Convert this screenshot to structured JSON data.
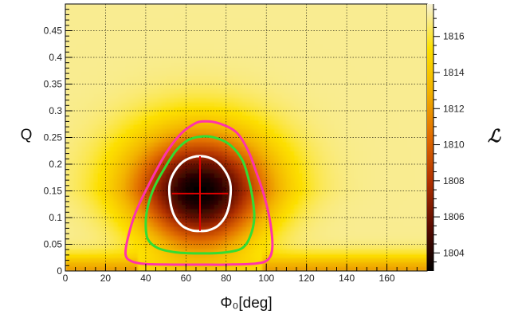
{
  "chart_data": {
    "type": "heatmap",
    "xlabel": "Φ₀[deg]",
    "ylabel": "Q",
    "zlabel": "ℒ",
    "xlim": [
      0,
      180
    ],
    "ylim": [
      0,
      0.5
    ],
    "zlim": [
      1803,
      1817.8
    ],
    "x_ticks": [
      0,
      20,
      40,
      60,
      80,
      100,
      120,
      140,
      160
    ],
    "x_tick_labels": [
      "0",
      "20",
      "40",
      "60",
      "80",
      "100",
      "120",
      "140",
      "160"
    ],
    "y_ticks": [
      0,
      0.05,
      0.1,
      0.15,
      0.2,
      0.25,
      0.3,
      0.35,
      0.4,
      0.45
    ],
    "y_tick_labels": [
      "0",
      "0.05",
      "0.1",
      "0.15",
      "0.2",
      "0.25",
      "0.3",
      "0.35",
      "0.4",
      "0.45"
    ],
    "z_ticks": [
      1804,
      1806,
      1808,
      1810,
      1812,
      1814,
      1816
    ],
    "z_tick_labels": [
      "1804",
      "1806",
      "1808",
      "1810",
      "1812",
      "1814",
      "1816"
    ],
    "grid": true,
    "colormap": [
      "#000000",
      "#5a0a00",
      "#b03000",
      "#e06a00",
      "#f2b000",
      "#fde000",
      "#f7f2d6"
    ],
    "best_fit": {
      "x": 67,
      "y": 0.145,
      "x_err": [
        53,
        81
      ],
      "y_err": [
        0.075,
        0.215
      ]
    },
    "contours": [
      {
        "color": "#ffffff",
        "points": [
          [
            67,
            0.215
          ],
          [
            74,
            0.208
          ],
          [
            79,
            0.19
          ],
          [
            82,
            0.165
          ],
          [
            82,
            0.135
          ],
          [
            80,
            0.105
          ],
          [
            76,
            0.085
          ],
          [
            71,
            0.076
          ],
          [
            67,
            0.075
          ],
          [
            63,
            0.076
          ],
          [
            58,
            0.085
          ],
          [
            54,
            0.105
          ],
          [
            52,
            0.135
          ],
          [
            52,
            0.165
          ],
          [
            55,
            0.19
          ],
          [
            60,
            0.208
          ]
        ]
      },
      {
        "color": "#33dd33",
        "points": [
          [
            68,
            0.252
          ],
          [
            75,
            0.249
          ],
          [
            82,
            0.236
          ],
          [
            88,
            0.208
          ],
          [
            91,
            0.175
          ],
          [
            93,
            0.14
          ],
          [
            94,
            0.1
          ],
          [
            92,
            0.065
          ],
          [
            88,
            0.043
          ],
          [
            80,
            0.035
          ],
          [
            68,
            0.033
          ],
          [
            55,
            0.035
          ],
          [
            46,
            0.043
          ],
          [
            41,
            0.06
          ],
          [
            40,
            0.09
          ],
          [
            41,
            0.12
          ],
          [
            44,
            0.155
          ],
          [
            49,
            0.19
          ],
          [
            55,
            0.225
          ],
          [
            61,
            0.245
          ]
        ]
      },
      {
        "color": "#ff33aa",
        "points": [
          [
            68,
            0.28
          ],
          [
            76,
            0.277
          ],
          [
            85,
            0.26
          ],
          [
            91,
            0.225
          ],
          [
            95,
            0.185
          ],
          [
            99,
            0.14
          ],
          [
            102,
            0.09
          ],
          [
            103,
            0.045
          ],
          [
            101,
            0.022
          ],
          [
            95,
            0.014
          ],
          [
            80,
            0.012
          ],
          [
            68,
            0.012
          ],
          [
            55,
            0.012
          ],
          [
            40,
            0.013
          ],
          [
            33,
            0.018
          ],
          [
            30,
            0.03
          ],
          [
            31,
            0.06
          ],
          [
            35,
            0.11
          ],
          [
            42,
            0.165
          ],
          [
            50,
            0.22
          ],
          [
            57,
            0.255
          ],
          [
            63,
            0.273
          ]
        ]
      }
    ]
  }
}
